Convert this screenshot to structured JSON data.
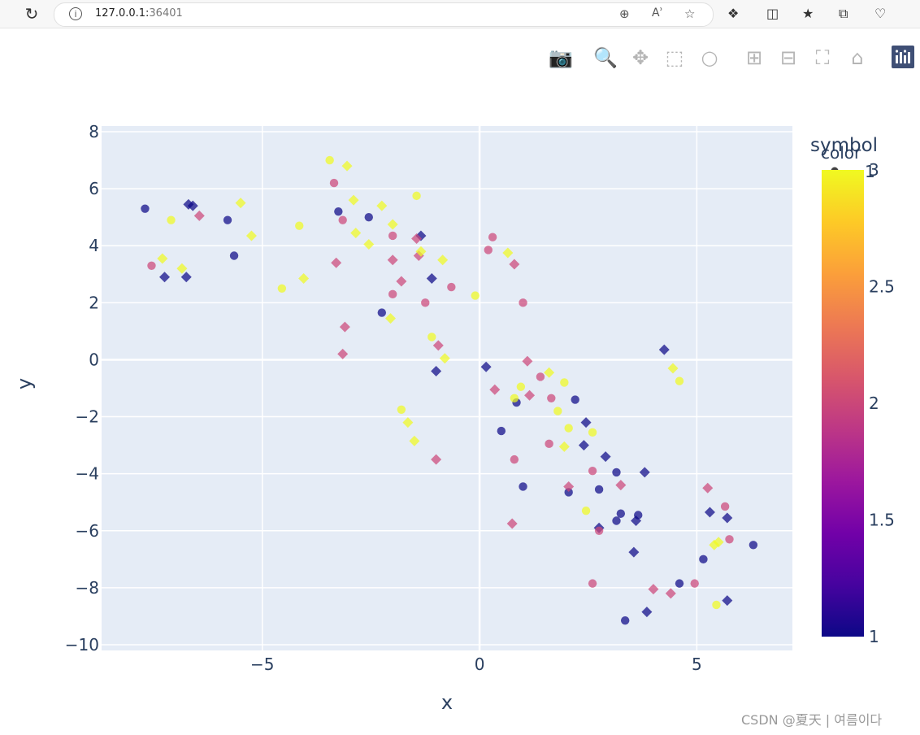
{
  "browser": {
    "url_host": "127.0.0.1:",
    "url_port": "36401",
    "reload_icon": "reload-icon",
    "info_icon": "info-icon"
  },
  "modebar": {
    "icons": [
      "camera-icon",
      "zoom-icon",
      "pan-icon",
      "box-select-icon",
      "lasso-select-icon",
      "zoom-in-icon",
      "zoom-out-icon",
      "autoscale-icon",
      "reset-axes-icon",
      "plotly-logo-icon"
    ]
  },
  "watermark": "CSDN @夏天 | 여름이다",
  "chart_data": {
    "type": "scatter",
    "xlabel": "x",
    "ylabel": "y",
    "xlim": [
      -8.7,
      7.2
    ],
    "ylim": [
      -10.2,
      8.2
    ],
    "xticks": [
      -5,
      0,
      5
    ],
    "xtick_labels": [
      "−5",
      "0",
      "5"
    ],
    "yticks": [
      8,
      6,
      4,
      2,
      0,
      -2,
      -4,
      -6,
      -8,
      -10
    ],
    "ytick_labels": [
      "8",
      "6",
      "4",
      "2",
      "0",
      "−2",
      "−4",
      "−6",
      "−8",
      "−10"
    ],
    "grid": true,
    "plot_bgcolor": "#e5ecf6",
    "legend": {
      "title": "symbol",
      "position": "top-right",
      "entries": [
        "1"
      ]
    },
    "colorbar": {
      "title": "color",
      "min": 1,
      "max": 3,
      "ticks": [
        "1",
        "1.5",
        "2",
        "2.5",
        "3"
      ],
      "colorscale": "plasma"
    },
    "colors": {
      "1": "#0d0887",
      "2": "#cc4778",
      "3": "#f0f921"
    },
    "points": [
      {
        "x": -7.7,
        "y": 5.3,
        "s": "c",
        "c": 1
      },
      {
        "x": -6.7,
        "y": 5.45,
        "s": "d",
        "c": 1
      },
      {
        "x": -6.6,
        "y": 5.4,
        "s": "d",
        "c": 1
      },
      {
        "x": -5.8,
        "y": 4.9,
        "s": "c",
        "c": 1
      },
      {
        "x": -5.65,
        "y": 3.65,
        "s": "c",
        "c": 1
      },
      {
        "x": -7.25,
        "y": 2.9,
        "s": "d",
        "c": 1
      },
      {
        "x": -6.75,
        "y": 2.9,
        "s": "d",
        "c": 1
      },
      {
        "x": -3.25,
        "y": 5.2,
        "s": "c",
        "c": 1
      },
      {
        "x": -2.55,
        "y": 5.0,
        "s": "c",
        "c": 1
      },
      {
        "x": -2.25,
        "y": 1.65,
        "s": "c",
        "c": 1
      },
      {
        "x": -1.35,
        "y": 4.35,
        "s": "d",
        "c": 1
      },
      {
        "x": -1.1,
        "y": 2.85,
        "s": "d",
        "c": 1
      },
      {
        "x": -1.0,
        "y": -0.4,
        "s": "d",
        "c": 1
      },
      {
        "x": 0.15,
        "y": -0.25,
        "s": "d",
        "c": 1
      },
      {
        "x": 0.5,
        "y": -2.5,
        "s": "c",
        "c": 1
      },
      {
        "x": 0.85,
        "y": -1.5,
        "s": "c",
        "c": 1
      },
      {
        "x": 1.0,
        "y": -4.45,
        "s": "c",
        "c": 1
      },
      {
        "x": 2.05,
        "y": -4.65,
        "s": "c",
        "c": 1
      },
      {
        "x": 2.2,
        "y": -1.4,
        "s": "c",
        "c": 1
      },
      {
        "x": 2.45,
        "y": -2.2,
        "s": "d",
        "c": 1
      },
      {
        "x": 2.4,
        "y": -3.0,
        "s": "d",
        "c": 1
      },
      {
        "x": 2.75,
        "y": -4.55,
        "s": "c",
        "c": 1
      },
      {
        "x": 2.75,
        "y": -5.9,
        "s": "d",
        "c": 1
      },
      {
        "x": 2.9,
        "y": -3.4,
        "s": "d",
        "c": 1
      },
      {
        "x": 3.15,
        "y": -3.95,
        "s": "c",
        "c": 1
      },
      {
        "x": 3.15,
        "y": -5.65,
        "s": "c",
        "c": 1
      },
      {
        "x": 3.25,
        "y": -5.4,
        "s": "c",
        "c": 1
      },
      {
        "x": 3.35,
        "y": -9.15,
        "s": "c",
        "c": 1
      },
      {
        "x": 3.55,
        "y": -6.75,
        "s": "d",
        "c": 1
      },
      {
        "x": 3.6,
        "y": -5.65,
        "s": "d",
        "c": 1
      },
      {
        "x": 3.65,
        "y": -5.45,
        "s": "c",
        "c": 1
      },
      {
        "x": 3.8,
        "y": -3.95,
        "s": "d",
        "c": 1
      },
      {
        "x": 3.85,
        "y": -8.85,
        "s": "d",
        "c": 1
      },
      {
        "x": 4.25,
        "y": 0.35,
        "s": "d",
        "c": 1
      },
      {
        "x": 4.6,
        "y": -7.85,
        "s": "c",
        "c": 1
      },
      {
        "x": 5.15,
        "y": -7.0,
        "s": "c",
        "c": 1
      },
      {
        "x": 5.3,
        "y": -5.35,
        "s": "d",
        "c": 1
      },
      {
        "x": 5.7,
        "y": -5.55,
        "s": "d",
        "c": 1
      },
      {
        "x": 5.7,
        "y": -8.45,
        "s": "d",
        "c": 1
      },
      {
        "x": 6.3,
        "y": -6.5,
        "s": "c",
        "c": 1
      },
      {
        "x": -7.55,
        "y": 3.3,
        "s": "c",
        "c": 2
      },
      {
        "x": -6.45,
        "y": 5.05,
        "s": "d",
        "c": 2
      },
      {
        "x": -3.35,
        "y": 6.2,
        "s": "c",
        "c": 2
      },
      {
        "x": -3.15,
        "y": 4.9,
        "s": "c",
        "c": 2
      },
      {
        "x": -3.3,
        "y": 3.4,
        "s": "d",
        "c": 2
      },
      {
        "x": -3.1,
        "y": 1.15,
        "s": "d",
        "c": 2
      },
      {
        "x": -3.15,
        "y": 0.2,
        "s": "d",
        "c": 2
      },
      {
        "x": -2.0,
        "y": 4.35,
        "s": "c",
        "c": 2
      },
      {
        "x": -2.0,
        "y": 3.5,
        "s": "d",
        "c": 2
      },
      {
        "x": -2.0,
        "y": 2.3,
        "s": "c",
        "c": 2
      },
      {
        "x": -1.8,
        "y": 2.75,
        "s": "d",
        "c": 2
      },
      {
        "x": -1.45,
        "y": 4.25,
        "s": "d",
        "c": 2
      },
      {
        "x": -1.4,
        "y": 3.65,
        "s": "d",
        "c": 2
      },
      {
        "x": -1.25,
        "y": 2.0,
        "s": "c",
        "c": 2
      },
      {
        "x": -0.95,
        "y": 0.5,
        "s": "d",
        "c": 2
      },
      {
        "x": -0.65,
        "y": 2.55,
        "s": "c",
        "c": 2
      },
      {
        "x": -1.0,
        "y": -3.5,
        "s": "d",
        "c": 2
      },
      {
        "x": 0.2,
        "y": 3.85,
        "s": "c",
        "c": 2
      },
      {
        "x": 0.3,
        "y": 4.3,
        "s": "c",
        "c": 2
      },
      {
        "x": 0.35,
        "y": -1.05,
        "s": "d",
        "c": 2
      },
      {
        "x": 0.8,
        "y": 3.35,
        "s": "d",
        "c": 2
      },
      {
        "x": 1.0,
        "y": 2.0,
        "s": "c",
        "c": 2
      },
      {
        "x": 1.1,
        "y": -0.05,
        "s": "d",
        "c": 2
      },
      {
        "x": 1.15,
        "y": -1.25,
        "s": "d",
        "c": 2
      },
      {
        "x": 1.4,
        "y": -0.6,
        "s": "c",
        "c": 2
      },
      {
        "x": 1.65,
        "y": -1.35,
        "s": "c",
        "c": 2
      },
      {
        "x": 1.6,
        "y": -2.95,
        "s": "c",
        "c": 2
      },
      {
        "x": 0.8,
        "y": -3.5,
        "s": "c",
        "c": 2
      },
      {
        "x": 0.75,
        "y": -5.75,
        "s": "d",
        "c": 2
      },
      {
        "x": 2.05,
        "y": -4.45,
        "s": "d",
        "c": 2
      },
      {
        "x": 2.6,
        "y": -3.9,
        "s": "c",
        "c": 2
      },
      {
        "x": 2.75,
        "y": -6.0,
        "s": "c",
        "c": 2
      },
      {
        "x": 2.6,
        "y": -7.85,
        "s": "c",
        "c": 2
      },
      {
        "x": 3.25,
        "y": -4.4,
        "s": "d",
        "c": 2
      },
      {
        "x": 4.0,
        "y": -8.05,
        "s": "d",
        "c": 2
      },
      {
        "x": 4.4,
        "y": -8.2,
        "s": "d",
        "c": 2
      },
      {
        "x": 4.95,
        "y": -7.85,
        "s": "c",
        "c": 2
      },
      {
        "x": 5.25,
        "y": -4.5,
        "s": "d",
        "c": 2
      },
      {
        "x": 5.65,
        "y": -5.15,
        "s": "c",
        "c": 2
      },
      {
        "x": 5.75,
        "y": -6.3,
        "s": "c",
        "c": 2
      },
      {
        "x": -7.1,
        "y": 4.9,
        "s": "c",
        "c": 3
      },
      {
        "x": -7.3,
        "y": 3.55,
        "s": "d",
        "c": 3
      },
      {
        "x": -6.85,
        "y": 3.2,
        "s": "d",
        "c": 3
      },
      {
        "x": -5.5,
        "y": 5.5,
        "s": "d",
        "c": 3
      },
      {
        "x": -5.25,
        "y": 4.35,
        "s": "d",
        "c": 3
      },
      {
        "x": -4.55,
        "y": 2.5,
        "s": "c",
        "c": 3
      },
      {
        "x": -4.15,
        "y": 4.7,
        "s": "c",
        "c": 3
      },
      {
        "x": -4.05,
        "y": 2.85,
        "s": "d",
        "c": 3
      },
      {
        "x": -3.45,
        "y": 7.0,
        "s": "c",
        "c": 3
      },
      {
        "x": -3.05,
        "y": 6.8,
        "s": "d",
        "c": 3
      },
      {
        "x": -2.9,
        "y": 5.6,
        "s": "d",
        "c": 3
      },
      {
        "x": -2.85,
        "y": 4.45,
        "s": "d",
        "c": 3
      },
      {
        "x": -2.55,
        "y": 4.05,
        "s": "d",
        "c": 3
      },
      {
        "x": -2.25,
        "y": 5.4,
        "s": "d",
        "c": 3
      },
      {
        "x": -2.0,
        "y": 4.75,
        "s": "d",
        "c": 3
      },
      {
        "x": -2.05,
        "y": 1.45,
        "s": "d",
        "c": 3
      },
      {
        "x": -1.45,
        "y": 5.75,
        "s": "c",
        "c": 3
      },
      {
        "x": -1.35,
        "y": 3.8,
        "s": "d",
        "c": 3
      },
      {
        "x": -0.85,
        "y": 3.5,
        "s": "d",
        "c": 3
      },
      {
        "x": -1.1,
        "y": 0.8,
        "s": "c",
        "c": 3
      },
      {
        "x": -0.8,
        "y": 0.05,
        "s": "d",
        "c": 3
      },
      {
        "x": -1.8,
        "y": -1.75,
        "s": "c",
        "c": 3
      },
      {
        "x": -1.65,
        "y": -2.2,
        "s": "d",
        "c": 3
      },
      {
        "x": -1.5,
        "y": -2.85,
        "s": "d",
        "c": 3
      },
      {
        "x": -0.1,
        "y": 2.25,
        "s": "c",
        "c": 3
      },
      {
        "x": 0.65,
        "y": 3.75,
        "s": "d",
        "c": 3
      },
      {
        "x": 0.8,
        "y": -1.35,
        "s": "c",
        "c": 3
      },
      {
        "x": 0.95,
        "y": -0.95,
        "s": "c",
        "c": 3
      },
      {
        "x": 1.6,
        "y": -0.45,
        "s": "d",
        "c": 3
      },
      {
        "x": 1.8,
        "y": -1.8,
        "s": "c",
        "c": 3
      },
      {
        "x": 1.95,
        "y": -0.8,
        "s": "c",
        "c": 3
      },
      {
        "x": 1.95,
        "y": -3.05,
        "s": "d",
        "c": 3
      },
      {
        "x": 2.05,
        "y": -2.4,
        "s": "c",
        "c": 3
      },
      {
        "x": 2.6,
        "y": -2.55,
        "s": "c",
        "c": 3
      },
      {
        "x": 2.45,
        "y": -5.3,
        "s": "c",
        "c": 3
      },
      {
        "x": 4.45,
        "y": -0.3,
        "s": "d",
        "c": 3
      },
      {
        "x": 4.6,
        "y": -0.75,
        "s": "c",
        "c": 3
      },
      {
        "x": 5.4,
        "y": -6.5,
        "s": "d",
        "c": 3
      },
      {
        "x": 5.5,
        "y": -6.4,
        "s": "d",
        "c": 3
      },
      {
        "x": 5.45,
        "y": -8.6,
        "s": "c",
        "c": 3
      }
    ]
  }
}
